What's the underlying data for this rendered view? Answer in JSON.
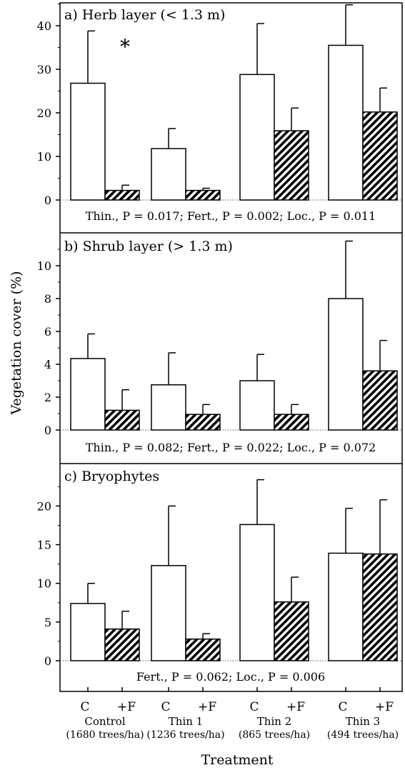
{
  "chart_data": {
    "type": "bar",
    "xlabel": "Treatment",
    "ylabel": "Vegetation cover (%)",
    "groups": [
      {
        "name": "Control",
        "density": "(1680 trees/ha)"
      },
      {
        "name": "Thin 1",
        "density": "(1236 trees/ha)"
      },
      {
        "name": "Thin 2",
        "density": "(865 trees/ha)"
      },
      {
        "name": "Thin 3",
        "density": "(494 trees/ha)"
      }
    ],
    "bar_labels": [
      "C",
      "+F"
    ],
    "colors": {
      "C": "#ffffff",
      "+F": "#000000",
      "hatch": "#000000"
    },
    "panels": [
      {
        "title": "a) Herb layer (< 1.3 m)",
        "ylim": [
          0,
          45
        ],
        "yticks": [
          0,
          10,
          20,
          30,
          40
        ],
        "stats": "Thin., P = 0.017; Fert., P = 0.002; Loc., P = 0.011",
        "annotation": "*",
        "series": [
          {
            "name": "C",
            "values": [
              26.8,
              11.8,
              28.8,
              35.5
            ],
            "errors": [
              12.0,
              4.6,
              11.7,
              9.3
            ]
          },
          {
            "name": "+F",
            "values": [
              2.2,
              2.2,
              15.9,
              20.2
            ],
            "errors": [
              1.2,
              0.5,
              5.2,
              5.5
            ]
          }
        ]
      },
      {
        "title": "b) Shrub layer (> 1.3 m)",
        "ylim": [
          0,
          12
        ],
        "yticks": [
          0,
          2,
          4,
          6,
          8,
          10
        ],
        "stats": "Thin., P = 0.082; Fert., P = 0.022; Loc., P = 0.072",
        "series": [
          {
            "name": "C",
            "values": [
              4.35,
              2.75,
              3.0,
              8.0
            ],
            "errors": [
              1.5,
              1.95,
              1.6,
              3.5
            ]
          },
          {
            "name": "+F",
            "values": [
              1.2,
              0.95,
              0.95,
              3.6
            ],
            "errors": [
              1.25,
              0.6,
              0.6,
              1.85
            ]
          }
        ]
      },
      {
        "title": "c) Bryophytes",
        "ylim": [
          0,
          24
        ],
        "yticks": [
          0,
          5,
          10,
          15,
          20
        ],
        "stats": "Fert., P = 0.062; Loc., P = 0.006",
        "series": [
          {
            "name": "C",
            "values": [
              7.4,
              12.3,
              17.6,
              13.9
            ],
            "errors": [
              2.6,
              7.7,
              5.8,
              5.8
            ]
          },
          {
            "name": "+F",
            "values": [
              4.1,
              2.8,
              7.6,
              13.8
            ],
            "errors": [
              2.3,
              0.7,
              3.2,
              7.0
            ]
          }
        ]
      }
    ]
  }
}
